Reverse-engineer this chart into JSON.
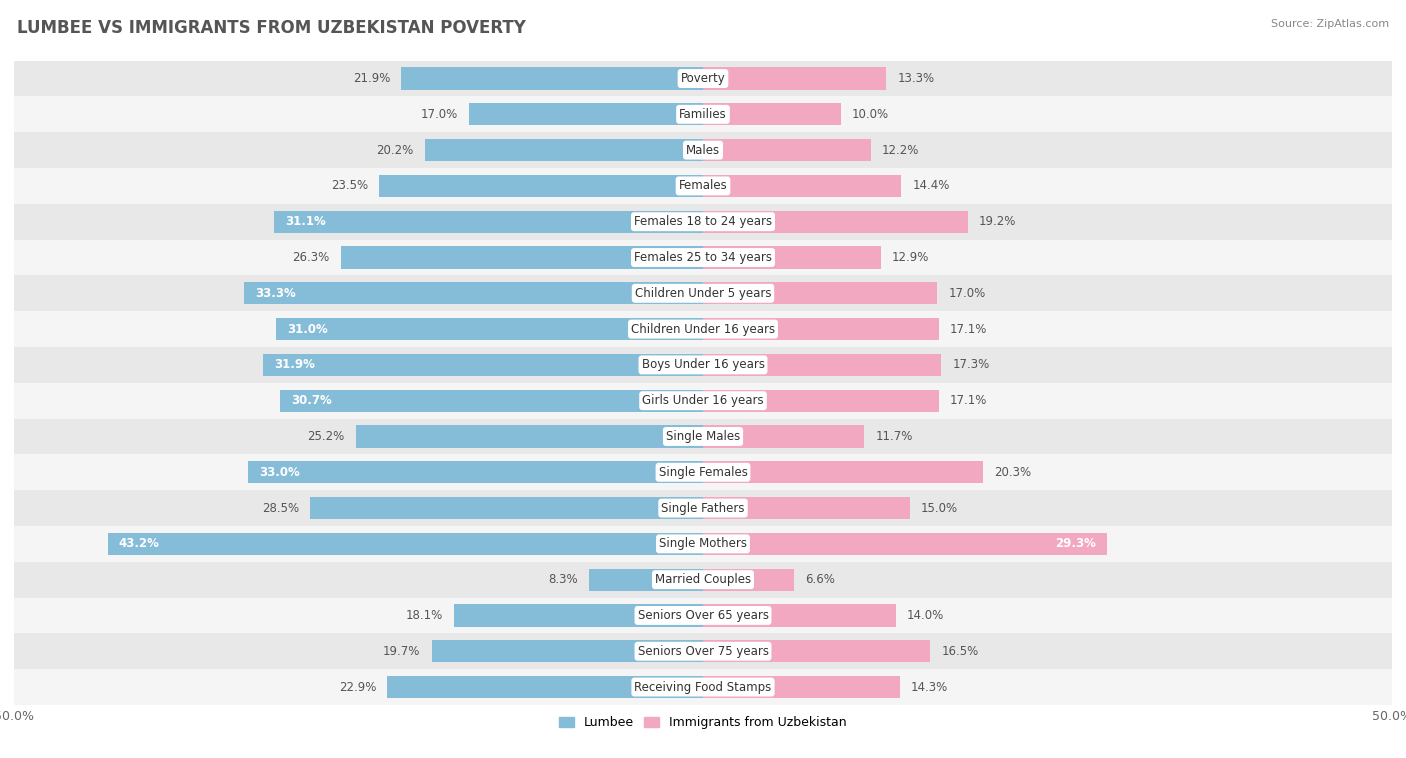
{
  "title": "LUMBEE VS IMMIGRANTS FROM UZBEKISTAN POVERTY",
  "source": "Source: ZipAtlas.com",
  "categories": [
    "Poverty",
    "Families",
    "Males",
    "Females",
    "Females 18 to 24 years",
    "Females 25 to 34 years",
    "Children Under 5 years",
    "Children Under 16 years",
    "Boys Under 16 years",
    "Girls Under 16 years",
    "Single Males",
    "Single Females",
    "Single Fathers",
    "Single Mothers",
    "Married Couples",
    "Seniors Over 65 years",
    "Seniors Over 75 years",
    "Receiving Food Stamps"
  ],
  "lumbee_values": [
    21.9,
    17.0,
    20.2,
    23.5,
    31.1,
    26.3,
    33.3,
    31.0,
    31.9,
    30.7,
    25.2,
    33.0,
    28.5,
    43.2,
    8.3,
    18.1,
    19.7,
    22.9
  ],
  "uzbekistan_values": [
    13.3,
    10.0,
    12.2,
    14.4,
    19.2,
    12.9,
    17.0,
    17.1,
    17.3,
    17.1,
    11.7,
    20.3,
    15.0,
    29.3,
    6.6,
    14.0,
    16.5,
    14.3
  ],
  "lumbee_color": "#85bdd8",
  "uzbekistan_color": "#f2a8c0",
  "bar_height": 0.62,
  "row_colors": [
    "#f5f5f5",
    "#e8e8e8"
  ],
  "axis_limit": 50.0,
  "label_fontsize": 8.5,
  "title_fontsize": 12,
  "source_fontsize": 8,
  "legend_labels": [
    "Lumbee",
    "Immigrants from Uzbekistan"
  ],
  "inside_label_threshold_lumbee": 29,
  "inside_label_threshold_uzbekistan": 25
}
